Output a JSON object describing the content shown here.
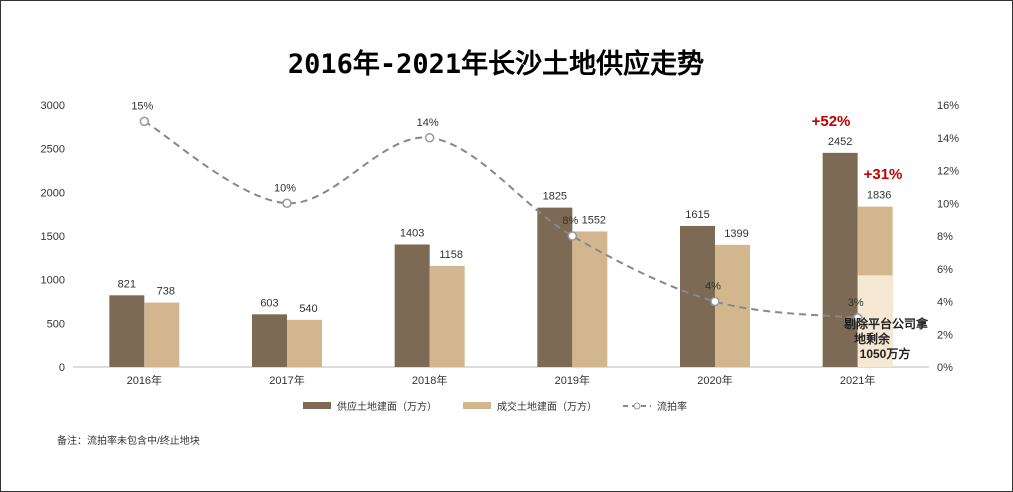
{
  "chart_data": {
    "type": "bar",
    "title": "2016年-2021年长沙土地供应走势",
    "categories": [
      "2016年",
      "2017年",
      "2018年",
      "2019年",
      "2020年",
      "2021年"
    ],
    "series": [
      {
        "name": "供应土地建面（万方）",
        "kind": "bar",
        "axis": "left",
        "color": "#7d6a55",
        "values": [
          821,
          603,
          1403,
          1825,
          1615,
          2452
        ]
      },
      {
        "name": "成交土地建面（万方）",
        "kind": "bar",
        "axis": "left",
        "color": "#d2b78e",
        "values": [
          738,
          540,
          1158,
          1552,
          1399,
          1836
        ]
      },
      {
        "name": "流拍率",
        "kind": "line",
        "axis": "right",
        "style": "dashed",
        "color": "#888888",
        "values": [
          15,
          10,
          14,
          8,
          4,
          3
        ],
        "labels": [
          "15%",
          "10%",
          "14%",
          "8%",
          "4%",
          "3%"
        ]
      }
    ],
    "y_left": {
      "min": 0,
      "max": 3000,
      "ticks": [
        "0",
        "500",
        "1000",
        "1500",
        "2000",
        "2500",
        "3000"
      ]
    },
    "y_right": {
      "min": 0,
      "max": 16,
      "ticks": [
        "0%",
        "2%",
        "4%",
        "6%",
        "8%",
        "10%",
        "12%",
        "14%",
        "16%"
      ]
    },
    "annotations": {
      "growth_supply": "+52%",
      "growth_deal": "+31%",
      "callout_lines": [
        "剔除平台公司拿",
        "地剩余",
        "1050万方"
      ],
      "callout_value": 1050
    },
    "legend_position": "bottom",
    "grid": false,
    "footnote": "备注：流拍率未包含中/终止地块"
  }
}
